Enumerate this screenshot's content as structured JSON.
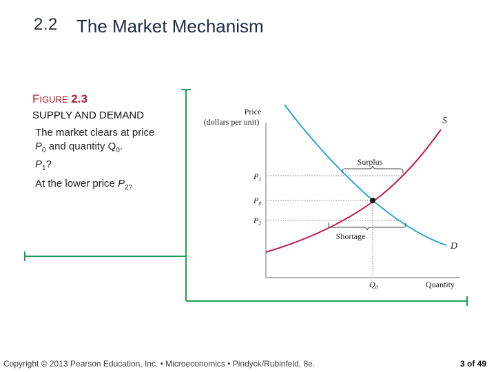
{
  "header": {
    "section_number": "2.2",
    "section_title": "The Market Mechanism"
  },
  "figure": {
    "label_first_letter": "F",
    "label_rest": "IGURE",
    "label_number": "2.3",
    "subtitle": "SUPPLY AND DEMAND"
  },
  "notes": {
    "line1": "The market clears at price",
    "line2_p": "P",
    "line2_p_sub": "0",
    "line2_mid": " and quantity Q",
    "line2_q_sub": "0",
    "line2_end": ".",
    "line3_p": "P",
    "line3_sub": "1",
    "line3_end": "?",
    "line4_start": "At the lower price ",
    "line4_p": "P",
    "line4_sub": "2?"
  },
  "diagram": {
    "y_axis_label_1": "Price",
    "y_axis_label_2": "(dollars per unit)",
    "x_axis_label": "Quantity",
    "supply_label": "S",
    "demand_label": "D",
    "surplus_label": "Surplus",
    "shortage_label": "Shortage",
    "p1": "P",
    "p1_sub": "1",
    "p0": "P",
    "p0_sub": "0",
    "p2": "P",
    "p2_sub": "2",
    "q0": "Q",
    "q0_sub": "0",
    "supply_color": "#c0174a",
    "demand_color": "#2aa6d6",
    "frame_color": "#1f9d55"
  },
  "footer": {
    "copyright": "Copyright © 2013 Pearson Education, Inc. • Microeconomics • Pindyck/Rubinfeld, 8e.",
    "page": "3 of 49"
  }
}
